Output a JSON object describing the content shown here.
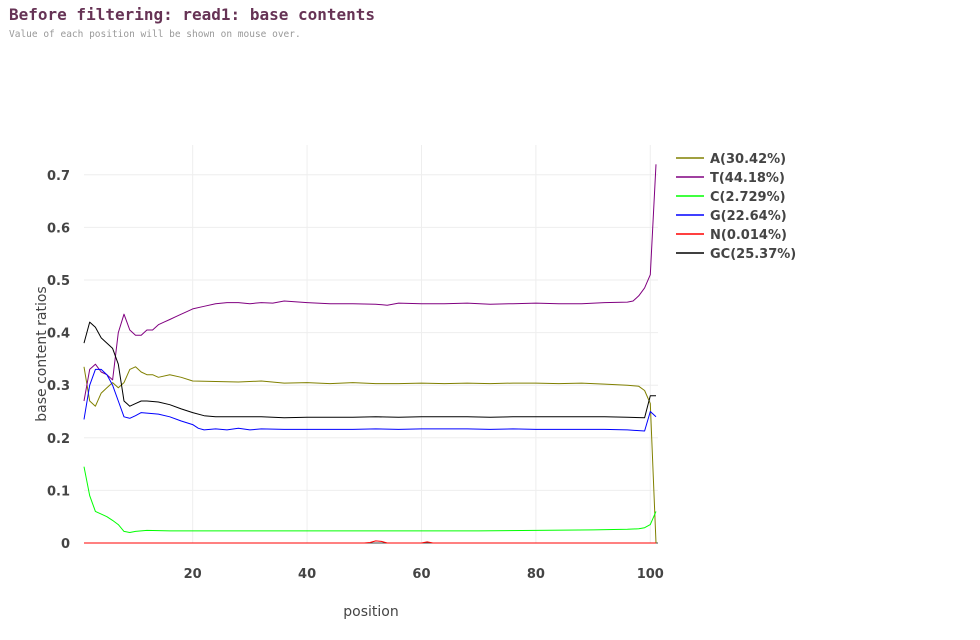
{
  "header": {
    "title": "Before filtering: read1: base contents",
    "subtitle": "Value of each position will be shown on mouse over."
  },
  "chart_data": {
    "type": "line",
    "xlabel": "position",
    "ylabel": "base content ratios",
    "xlim": [
      1,
      101
    ],
    "ylim": [
      0,
      0.75
    ],
    "xticks": [
      20,
      40,
      60,
      80,
      100
    ],
    "yticks": [
      0,
      0.1,
      0.2,
      0.3,
      0.4,
      0.5,
      0.6,
      0.7
    ],
    "ytick_labels": [
      "0",
      "0.1",
      "0.2",
      "0.3",
      "0.4",
      "0.5",
      "0.6",
      "0.7"
    ],
    "grid": true,
    "legend_position": "top-right",
    "series": [
      {
        "name": "A(30.42%)",
        "color": "#808000",
        "points": [
          [
            1,
            0.335
          ],
          [
            2,
            0.27
          ],
          [
            3,
            0.26
          ],
          [
            4,
            0.285
          ],
          [
            5,
            0.295
          ],
          [
            6,
            0.305
          ],
          [
            7,
            0.295
          ],
          [
            8,
            0.305
          ],
          [
            9,
            0.33
          ],
          [
            10,
            0.335
          ],
          [
            11,
            0.325
          ],
          [
            12,
            0.32
          ],
          [
            13,
            0.32
          ],
          [
            14,
            0.315
          ],
          [
            16,
            0.32
          ],
          [
            18,
            0.315
          ],
          [
            20,
            0.308
          ],
          [
            24,
            0.307
          ],
          [
            28,
            0.306
          ],
          [
            32,
            0.308
          ],
          [
            36,
            0.304
          ],
          [
            40,
            0.305
          ],
          [
            44,
            0.303
          ],
          [
            48,
            0.305
          ],
          [
            52,
            0.303
          ],
          [
            56,
            0.303
          ],
          [
            60,
            0.304
          ],
          [
            64,
            0.303
          ],
          [
            68,
            0.304
          ],
          [
            72,
            0.303
          ],
          [
            76,
            0.304
          ],
          [
            80,
            0.304
          ],
          [
            84,
            0.303
          ],
          [
            88,
            0.304
          ],
          [
            92,
            0.302
          ],
          [
            96,
            0.3
          ],
          [
            98,
            0.298
          ],
          [
            99,
            0.29
          ],
          [
            100,
            0.265
          ],
          [
            101,
            0.0
          ]
        ]
      },
      {
        "name": "T(44.18%)",
        "color": "#800080",
        "points": [
          [
            1,
            0.27
          ],
          [
            2,
            0.33
          ],
          [
            3,
            0.34
          ],
          [
            4,
            0.325
          ],
          [
            5,
            0.32
          ],
          [
            6,
            0.31
          ],
          [
            7,
            0.4
          ],
          [
            8,
            0.435
          ],
          [
            9,
            0.405
          ],
          [
            10,
            0.395
          ],
          [
            11,
            0.395
          ],
          [
            12,
            0.405
          ],
          [
            13,
            0.405
          ],
          [
            14,
            0.415
          ],
          [
            15,
            0.42
          ],
          [
            16,
            0.425
          ],
          [
            17,
            0.43
          ],
          [
            18,
            0.435
          ],
          [
            19,
            0.44
          ],
          [
            20,
            0.445
          ],
          [
            22,
            0.45
          ],
          [
            24,
            0.455
          ],
          [
            26,
            0.457
          ],
          [
            28,
            0.457
          ],
          [
            30,
            0.455
          ],
          [
            32,
            0.457
          ],
          [
            34,
            0.456
          ],
          [
            36,
            0.46
          ],
          [
            40,
            0.457
          ],
          [
            44,
            0.455
          ],
          [
            48,
            0.455
          ],
          [
            52,
            0.454
          ],
          [
            54,
            0.452
          ],
          [
            56,
            0.456
          ],
          [
            60,
            0.455
          ],
          [
            64,
            0.455
          ],
          [
            68,
            0.456
          ],
          [
            72,
            0.454
          ],
          [
            76,
            0.455
          ],
          [
            80,
            0.456
          ],
          [
            84,
            0.455
          ],
          [
            88,
            0.455
          ],
          [
            92,
            0.457
          ],
          [
            96,
            0.458
          ],
          [
            97,
            0.46
          ],
          [
            98,
            0.47
          ],
          [
            99,
            0.485
          ],
          [
            100,
            0.51
          ],
          [
            101,
            0.72
          ]
        ]
      },
      {
        "name": "C(2.729%)",
        "color": "#00ff00",
        "points": [
          [
            1,
            0.145
          ],
          [
            2,
            0.09
          ],
          [
            3,
            0.06
          ],
          [
            4,
            0.055
          ],
          [
            5,
            0.05
          ],
          [
            6,
            0.043
          ],
          [
            7,
            0.035
          ],
          [
            8,
            0.022
          ],
          [
            9,
            0.02
          ],
          [
            10,
            0.022
          ],
          [
            12,
            0.024
          ],
          [
            16,
            0.023
          ],
          [
            20,
            0.023
          ],
          [
            30,
            0.023
          ],
          [
            40,
            0.023
          ],
          [
            50,
            0.023
          ],
          [
            60,
            0.023
          ],
          [
            70,
            0.023
          ],
          [
            80,
            0.024
          ],
          [
            90,
            0.025
          ],
          [
            96,
            0.026
          ],
          [
            98,
            0.027
          ],
          [
            99,
            0.029
          ],
          [
            100,
            0.035
          ],
          [
            101,
            0.06
          ]
        ]
      },
      {
        "name": "G(22.64%)",
        "color": "#0000ff",
        "points": [
          [
            1,
            0.235
          ],
          [
            2,
            0.3
          ],
          [
            3,
            0.33
          ],
          [
            4,
            0.33
          ],
          [
            5,
            0.32
          ],
          [
            6,
            0.3
          ],
          [
            7,
            0.27
          ],
          [
            8,
            0.24
          ],
          [
            9,
            0.237
          ],
          [
            10,
            0.242
          ],
          [
            11,
            0.248
          ],
          [
            12,
            0.247
          ],
          [
            14,
            0.245
          ],
          [
            16,
            0.24
          ],
          [
            18,
            0.232
          ],
          [
            20,
            0.225
          ],
          [
            21,
            0.218
          ],
          [
            22,
            0.215
          ],
          [
            24,
            0.217
          ],
          [
            26,
            0.215
          ],
          [
            28,
            0.218
          ],
          [
            30,
            0.215
          ],
          [
            32,
            0.217
          ],
          [
            36,
            0.216
          ],
          [
            40,
            0.216
          ],
          [
            44,
            0.216
          ],
          [
            48,
            0.216
          ],
          [
            52,
            0.217
          ],
          [
            56,
            0.216
          ],
          [
            60,
            0.217
          ],
          [
            64,
            0.217
          ],
          [
            68,
            0.217
          ],
          [
            72,
            0.216
          ],
          [
            76,
            0.217
          ],
          [
            80,
            0.216
          ],
          [
            84,
            0.216
          ],
          [
            88,
            0.216
          ],
          [
            92,
            0.216
          ],
          [
            96,
            0.215
          ],
          [
            99,
            0.213
          ],
          [
            100,
            0.25
          ],
          [
            101,
            0.24
          ]
        ]
      },
      {
        "name": "N(0.014%)",
        "color": "#ff0000",
        "points": [
          [
            1,
            0.0
          ],
          [
            50,
            0.0
          ],
          [
            51,
            0.001
          ],
          [
            52,
            0.004
          ],
          [
            53,
            0.003
          ],
          [
            54,
            0.0
          ],
          [
            60,
            0.0
          ],
          [
            61,
            0.002
          ],
          [
            62,
            0.0
          ],
          [
            101,
            0.0
          ]
        ]
      },
      {
        "name": "GC(25.37%)",
        "color": "#000000",
        "points": [
          [
            1,
            0.38
          ],
          [
            2,
            0.42
          ],
          [
            3,
            0.41
          ],
          [
            4,
            0.39
          ],
          [
            5,
            0.38
          ],
          [
            6,
            0.37
          ],
          [
            7,
            0.34
          ],
          [
            8,
            0.27
          ],
          [
            9,
            0.26
          ],
          [
            10,
            0.265
          ],
          [
            11,
            0.27
          ],
          [
            12,
            0.27
          ],
          [
            14,
            0.268
          ],
          [
            16,
            0.263
          ],
          [
            18,
            0.255
          ],
          [
            20,
            0.248
          ],
          [
            22,
            0.242
          ],
          [
            24,
            0.24
          ],
          [
            28,
            0.24
          ],
          [
            32,
            0.24
          ],
          [
            36,
            0.238
          ],
          [
            40,
            0.239
          ],
          [
            44,
            0.239
          ],
          [
            48,
            0.239
          ],
          [
            52,
            0.24
          ],
          [
            56,
            0.239
          ],
          [
            60,
            0.24
          ],
          [
            64,
            0.24
          ],
          [
            68,
            0.24
          ],
          [
            72,
            0.239
          ],
          [
            76,
            0.24
          ],
          [
            80,
            0.24
          ],
          [
            84,
            0.24
          ],
          [
            88,
            0.24
          ],
          [
            92,
            0.24
          ],
          [
            96,
            0.239
          ],
          [
            99,
            0.238
          ],
          [
            100,
            0.28
          ],
          [
            101,
            0.28
          ]
        ]
      }
    ]
  }
}
